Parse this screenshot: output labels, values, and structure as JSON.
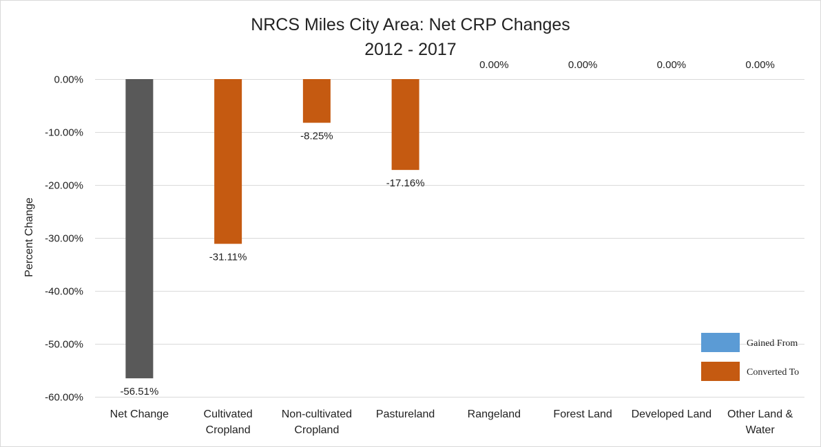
{
  "chart_data": {
    "type": "bar",
    "title": [
      "NRCS Miles City Area: Net CRP Changes",
      "2012 - 2017"
    ],
    "ylabel": "Percent Change",
    "ylim": [
      -60,
      0
    ],
    "yticks": [
      0,
      -10,
      -20,
      -30,
      -40,
      -50,
      -60
    ],
    "ytick_labels": [
      "0.00%",
      "-10.00%",
      "-20.00%",
      "-30.00%",
      "-40.00%",
      "-50.00%",
      "-60.00%"
    ],
    "grid": true,
    "legend_position": "bottom-right",
    "categories": [
      [
        "Net Change"
      ],
      [
        "Cultivated",
        "Cropland"
      ],
      [
        "Non-cultivated",
        "Cropland"
      ],
      [
        "Pastureland"
      ],
      [
        "Rangeland"
      ],
      [
        "Forest Land"
      ],
      [
        "Developed Land"
      ],
      [
        "Other Land &",
        "Water"
      ]
    ],
    "values": [
      -56.51,
      -31.11,
      -8.25,
      -17.16,
      0,
      0,
      0,
      0
    ],
    "data_labels": [
      "-56.51%",
      "-31.11%",
      "-8.25%",
      "-17.16%",
      "0.00%",
      "0.00%",
      "0.00%",
      "0.00%"
    ],
    "bar_colors": [
      "#595959",
      "#c55a11",
      "#c55a11",
      "#c55a11",
      "#c55a11",
      "#c55a11",
      "#c55a11",
      "#c55a11"
    ],
    "legend": [
      {
        "name": "Gained From",
        "color": "#5b9bd5"
      },
      {
        "name": "Converted To",
        "color": "#c55a11"
      }
    ]
  }
}
